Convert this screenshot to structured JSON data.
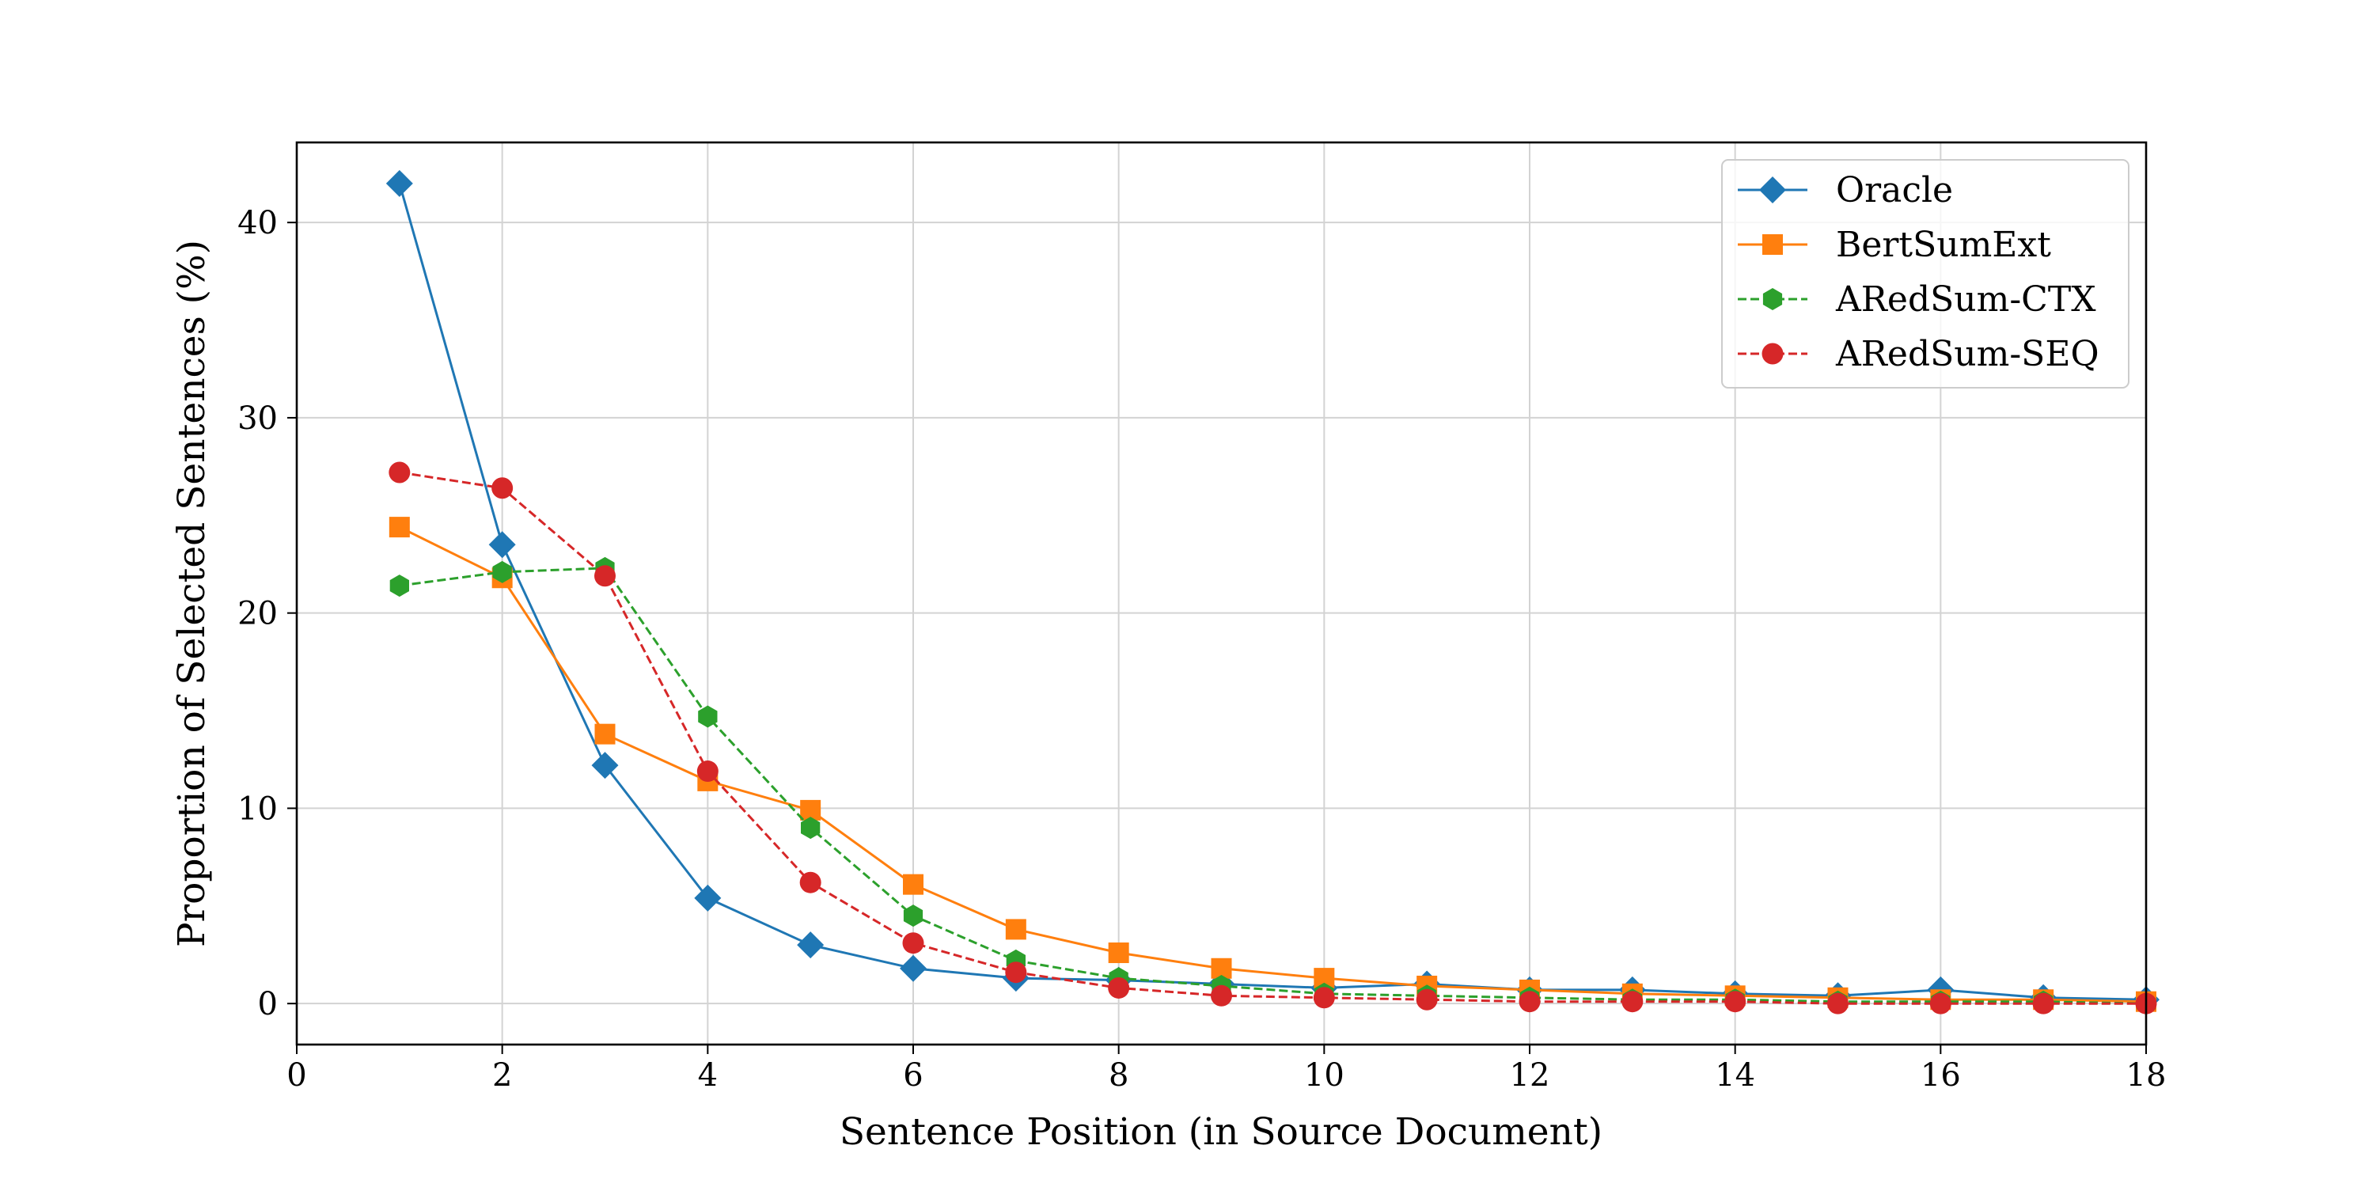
{
  "chart_data": {
    "type": "line",
    "title": "",
    "xlabel": "Sentence Position (in Source Document)",
    "ylabel": "Proportion of Selected Sentences (%)",
    "xlim": [
      0,
      18
    ],
    "ylim": [
      -2.1,
      44.1
    ],
    "xticks": [
      0,
      2,
      4,
      6,
      8,
      10,
      12,
      14,
      16,
      18
    ],
    "yticks": [
      0,
      10,
      20,
      30,
      40
    ],
    "grid": true,
    "legend_position": "top-right",
    "x": [
      1,
      2,
      3,
      4,
      5,
      6,
      7,
      8,
      9,
      10,
      11,
      12,
      13,
      14,
      15,
      16,
      17,
      18
    ],
    "series": [
      {
        "name": "Oracle",
        "color": "#1f77b4",
        "marker": "diamond",
        "line_style": "solid",
        "values": [
          42.0,
          23.5,
          12.2,
          5.4,
          3.0,
          1.8,
          1.3,
          1.2,
          1.0,
          0.8,
          1.0,
          0.7,
          0.7,
          0.5,
          0.4,
          0.7,
          0.3,
          0.2
        ]
      },
      {
        "name": "BertSumExt",
        "color": "#ff7f0e",
        "marker": "square",
        "line_style": "solid",
        "values": [
          24.4,
          21.8,
          13.8,
          11.4,
          9.9,
          6.1,
          3.8,
          2.6,
          1.8,
          1.3,
          0.9,
          0.7,
          0.5,
          0.4,
          0.3,
          0.2,
          0.2,
          0.1
        ]
      },
      {
        "name": "ARedSum-CTX",
        "color": "#2ca02c",
        "marker": "hexagon",
        "line_style": "dashed",
        "values": [
          21.4,
          22.1,
          22.3,
          14.7,
          9.0,
          4.5,
          2.2,
          1.3,
          0.9,
          0.5,
          0.4,
          0.3,
          0.2,
          0.2,
          0.1,
          0.1,
          0.1,
          0.0
        ]
      },
      {
        "name": "ARedSum-SEQ",
        "color": "#d62728",
        "marker": "circle",
        "line_style": "dashed",
        "values": [
          27.2,
          26.4,
          21.9,
          11.9,
          6.2,
          3.1,
          1.6,
          0.8,
          0.4,
          0.3,
          0.2,
          0.1,
          0.1,
          0.1,
          0.0,
          0.0,
          0.0,
          0.0
        ]
      }
    ]
  }
}
